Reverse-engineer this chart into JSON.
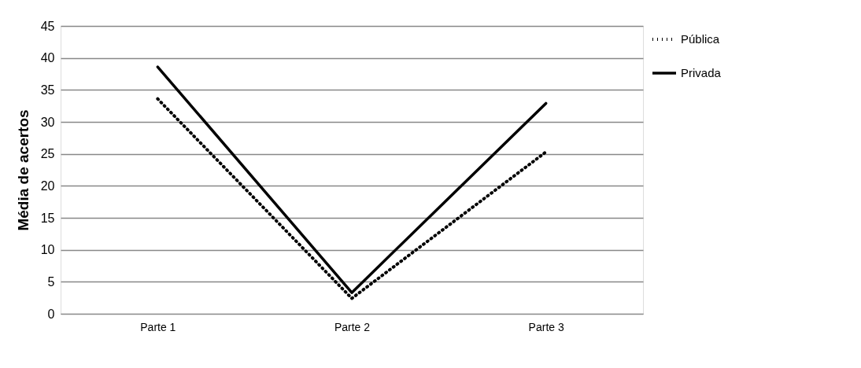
{
  "chart_data": {
    "type": "line",
    "ylabel": "Média de acertos",
    "categories": [
      "Parte 1",
      "Parte 2",
      "Parte 3"
    ],
    "series": [
      {
        "name": "Pública",
        "color": "#000000",
        "line_style": "dotted",
        "values": [
          33.6,
          2.4,
          25.3
        ]
      },
      {
        "name": "Privada",
        "color": "#000000",
        "line_style": "solid",
        "values": [
          38.6,
          3.3,
          32.9
        ]
      }
    ],
    "ylim": [
      0,
      45
    ],
    "yticks": [
      0,
      5,
      10,
      15,
      20,
      25,
      30,
      35,
      40,
      45
    ],
    "grid": "y",
    "legend": "right",
    "marker": "none"
  }
}
